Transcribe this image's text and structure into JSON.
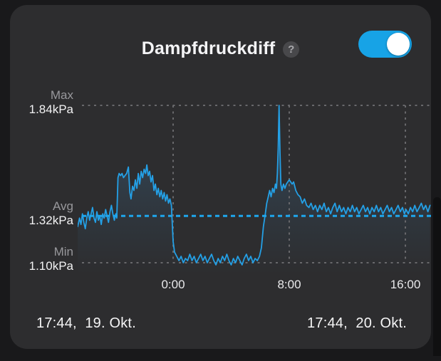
{
  "header": {
    "title": "Dampfdruckdiff",
    "help_glyph": "?",
    "toggle": {
      "state": "on",
      "on_color": "#17a3e6"
    }
  },
  "footer": {
    "start_timestamp": "17:44,  19. Okt.",
    "end_timestamp": "17:44,  20. Okt."
  },
  "colors": {
    "card_bg": "#2d2d2f",
    "page_bg": "#19191b",
    "accent_blue": "#17a3e6",
    "line_blue": "#24a0e6",
    "grid_gray": "#68686b"
  },
  "chart_data": {
    "type": "line",
    "title": "Dampfdruckdiff",
    "unit": "kPa",
    "legend_position": "none",
    "grid": "dashed",
    "y_markers": {
      "max": {
        "label": "Max",
        "value_label": "1.84kPa",
        "v": 1.84
      },
      "avg": {
        "label": "Avg",
        "value_label": "1.32kPa",
        "v": 1.32
      },
      "min": {
        "label": "Min",
        "value_label": "1.10kPa",
        "v": 1.1
      }
    },
    "ylim": [
      1.02,
      1.88
    ],
    "x_ticks": [
      {
        "label": "0:00",
        "t": 0
      },
      {
        "label": "8:00",
        "t": 8
      },
      {
        "label": "16:00",
        "t": 16
      }
    ],
    "t_range_hours": [
      -6.57,
      17.7
    ],
    "series": [
      {
        "name": "Dampfdruckdiff (kPa)",
        "color": "#24a0e6",
        "points": [
          [
            -6.57,
            1.27
          ],
          [
            -6.45,
            1.31
          ],
          [
            -6.35,
            1.28
          ],
          [
            -6.25,
            1.33
          ],
          [
            -6.15,
            1.29
          ],
          [
            -6.05,
            1.26
          ],
          [
            -5.95,
            1.31
          ],
          [
            -5.85,
            1.34
          ],
          [
            -5.75,
            1.3
          ],
          [
            -5.65,
            1.33
          ],
          [
            -5.55,
            1.36
          ],
          [
            -5.45,
            1.31
          ],
          [
            -5.35,
            1.29
          ],
          [
            -5.25,
            1.34
          ],
          [
            -5.15,
            1.3
          ],
          [
            -5.05,
            1.32
          ],
          [
            -4.95,
            1.28
          ],
          [
            -4.85,
            1.33
          ],
          [
            -4.75,
            1.31
          ],
          [
            -4.65,
            1.35
          ],
          [
            -4.55,
            1.32
          ],
          [
            -4.45,
            1.29
          ],
          [
            -4.35,
            1.34
          ],
          [
            -4.25,
            1.37
          ],
          [
            -4.15,
            1.33
          ],
          [
            -4.05,
            1.3
          ],
          [
            -3.95,
            1.33
          ],
          [
            -3.88,
            1.31
          ],
          [
            -3.8,
            1.5
          ],
          [
            -3.72,
            1.52
          ],
          [
            -3.62,
            1.51
          ],
          [
            -3.52,
            1.52
          ],
          [
            -3.42,
            1.5
          ],
          [
            -3.32,
            1.51
          ],
          [
            -3.2,
            1.52
          ],
          [
            -3.08,
            1.55
          ],
          [
            -2.98,
            1.43
          ],
          [
            -2.9,
            1.4
          ],
          [
            -2.8,
            1.46
          ],
          [
            -2.7,
            1.44
          ],
          [
            -2.6,
            1.49
          ],
          [
            -2.5,
            1.45
          ],
          [
            -2.4,
            1.52
          ],
          [
            -2.3,
            1.47
          ],
          [
            -2.2,
            1.53
          ],
          [
            -2.1,
            1.5
          ],
          [
            -2.0,
            1.54
          ],
          [
            -1.9,
            1.52
          ],
          [
            -1.81,
            1.56
          ],
          [
            -1.72,
            1.51
          ],
          [
            -1.62,
            1.53
          ],
          [
            -1.52,
            1.48
          ],
          [
            -1.42,
            1.51
          ],
          [
            -1.32,
            1.44
          ],
          [
            -1.22,
            1.47
          ],
          [
            -1.12,
            1.42
          ],
          [
            -1.02,
            1.45
          ],
          [
            -0.92,
            1.41
          ],
          [
            -0.82,
            1.44
          ],
          [
            -0.72,
            1.4
          ],
          [
            -0.62,
            1.43
          ],
          [
            -0.52,
            1.39
          ],
          [
            -0.42,
            1.42
          ],
          [
            -0.32,
            1.38
          ],
          [
            -0.22,
            1.4
          ],
          [
            -0.12,
            1.37
          ],
          [
            0.0,
            1.2
          ],
          [
            0.1,
            1.15
          ],
          [
            0.25,
            1.13
          ],
          [
            0.4,
            1.11
          ],
          [
            0.55,
            1.13
          ],
          [
            0.7,
            1.1
          ],
          [
            0.85,
            1.12
          ],
          [
            1.0,
            1.11
          ],
          [
            1.15,
            1.14
          ],
          [
            1.3,
            1.11
          ],
          [
            1.45,
            1.13
          ],
          [
            1.6,
            1.1
          ],
          [
            1.75,
            1.12
          ],
          [
            1.9,
            1.14
          ],
          [
            2.05,
            1.11
          ],
          [
            2.2,
            1.13
          ],
          [
            2.35,
            1.1
          ],
          [
            2.5,
            1.12
          ],
          [
            2.65,
            1.14
          ],
          [
            2.8,
            1.11
          ],
          [
            2.95,
            1.09
          ],
          [
            3.1,
            1.12
          ],
          [
            3.25,
            1.1
          ],
          [
            3.4,
            1.13
          ],
          [
            3.55,
            1.11
          ],
          [
            3.7,
            1.14
          ],
          [
            3.85,
            1.11
          ],
          [
            4.0,
            1.09
          ],
          [
            4.15,
            1.12
          ],
          [
            4.3,
            1.1
          ],
          [
            4.45,
            1.13
          ],
          [
            4.6,
            1.11
          ],
          [
            4.75,
            1.09
          ],
          [
            4.9,
            1.12
          ],
          [
            5.05,
            1.14
          ],
          [
            5.2,
            1.11
          ],
          [
            5.35,
            1.13
          ],
          [
            5.5,
            1.1
          ],
          [
            5.65,
            1.12
          ],
          [
            5.8,
            1.11
          ],
          [
            5.95,
            1.13
          ],
          [
            6.08,
            1.17
          ],
          [
            6.22,
            1.27
          ],
          [
            6.35,
            1.33
          ],
          [
            6.45,
            1.38
          ],
          [
            6.55,
            1.41
          ],
          [
            6.65,
            1.44
          ],
          [
            6.75,
            1.41
          ],
          [
            6.85,
            1.45
          ],
          [
            6.95,
            1.43
          ],
          [
            7.05,
            1.47
          ],
          [
            7.12,
            1.45
          ],
          [
            7.18,
            1.52
          ],
          [
            7.24,
            1.64
          ],
          [
            7.3,
            1.84
          ],
          [
            7.36,
            1.62
          ],
          [
            7.42,
            1.47
          ],
          [
            7.5,
            1.44
          ],
          [
            7.6,
            1.47
          ],
          [
            7.7,
            1.45
          ],
          [
            7.8,
            1.47
          ],
          [
            7.9,
            1.48
          ],
          [
            8.0,
            1.49
          ],
          [
            8.1,
            1.48
          ],
          [
            8.2,
            1.47
          ],
          [
            8.3,
            1.48
          ],
          [
            8.45,
            1.44
          ],
          [
            8.6,
            1.42
          ],
          [
            8.75,
            1.41
          ],
          [
            8.9,
            1.38
          ],
          [
            9.05,
            1.4
          ],
          [
            9.2,
            1.37
          ],
          [
            9.36,
            1.36
          ],
          [
            9.5,
            1.38
          ],
          [
            9.65,
            1.35
          ],
          [
            9.8,
            1.37
          ],
          [
            9.95,
            1.34
          ],
          [
            10.1,
            1.37
          ],
          [
            10.25,
            1.35
          ],
          [
            10.4,
            1.38
          ],
          [
            10.55,
            1.34
          ],
          [
            10.7,
            1.36
          ],
          [
            10.85,
            1.33
          ],
          [
            11.0,
            1.36
          ],
          [
            11.15,
            1.38
          ],
          [
            11.3,
            1.34
          ],
          [
            11.45,
            1.37
          ],
          [
            11.6,
            1.34
          ],
          [
            11.75,
            1.36
          ],
          [
            11.9,
            1.33
          ],
          [
            12.05,
            1.36
          ],
          [
            12.2,
            1.34
          ],
          [
            12.35,
            1.37
          ],
          [
            12.5,
            1.34
          ],
          [
            12.65,
            1.36
          ],
          [
            12.8,
            1.33
          ],
          [
            12.95,
            1.35
          ],
          [
            13.1,
            1.37
          ],
          [
            13.25,
            1.34
          ],
          [
            13.4,
            1.36
          ],
          [
            13.55,
            1.33
          ],
          [
            13.7,
            1.36
          ],
          [
            13.85,
            1.34
          ],
          [
            14.0,
            1.37
          ],
          [
            14.15,
            1.34
          ],
          [
            14.3,
            1.36
          ],
          [
            14.45,
            1.33
          ],
          [
            14.6,
            1.35
          ],
          [
            14.75,
            1.37
          ],
          [
            14.9,
            1.34
          ],
          [
            15.05,
            1.36
          ],
          [
            15.2,
            1.33
          ],
          [
            15.35,
            1.35
          ],
          [
            15.5,
            1.37
          ],
          [
            15.65,
            1.34
          ],
          [
            15.8,
            1.36
          ],
          [
            15.93,
            1.33
          ],
          [
            16.05,
            1.35
          ],
          [
            16.2,
            1.33
          ],
          [
            16.35,
            1.36
          ],
          [
            16.5,
            1.34
          ],
          [
            16.65,
            1.37
          ],
          [
            16.8,
            1.34
          ],
          [
            16.95,
            1.36
          ],
          [
            17.1,
            1.38
          ],
          [
            17.25,
            1.35
          ],
          [
            17.4,
            1.37
          ],
          [
            17.55,
            1.34
          ],
          [
            17.7,
            1.37
          ]
        ]
      }
    ]
  }
}
